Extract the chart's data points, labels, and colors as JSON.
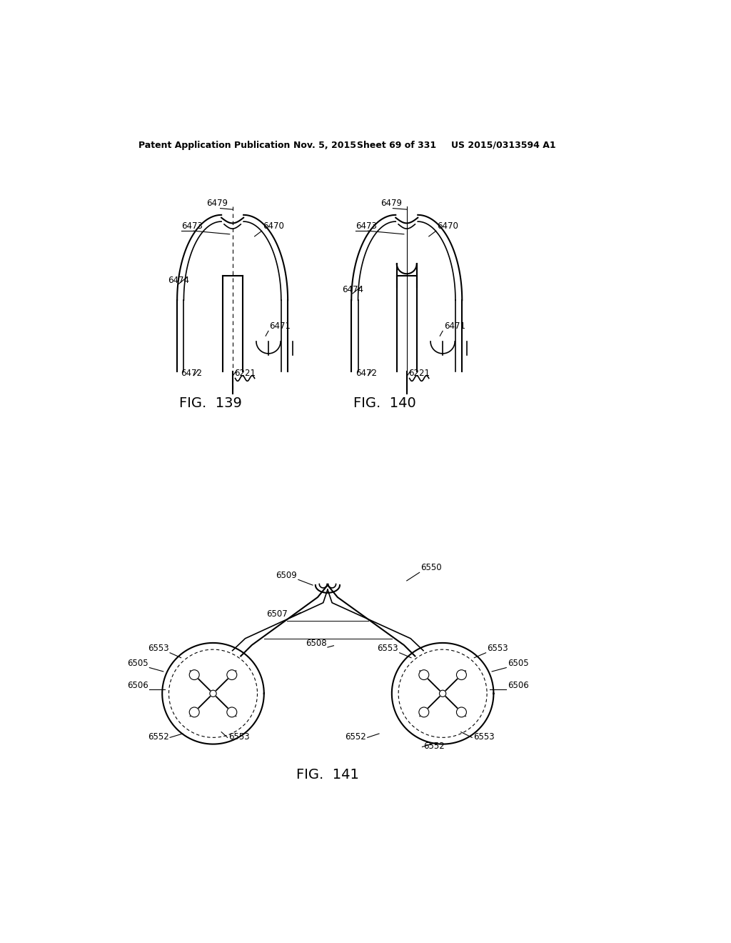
{
  "bg_color": "#ffffff",
  "text_color": "#000000",
  "line_color": "#000000",
  "header_text": "Patent Application Publication",
  "header_date": "Nov. 5, 2015",
  "header_sheet": "Sheet 69 of 331",
  "header_patent": "US 2015/0313594 A1",
  "fig139_label": "FIG.  139",
  "fig140_label": "FIG.  140",
  "fig141_label": "FIG.  141"
}
